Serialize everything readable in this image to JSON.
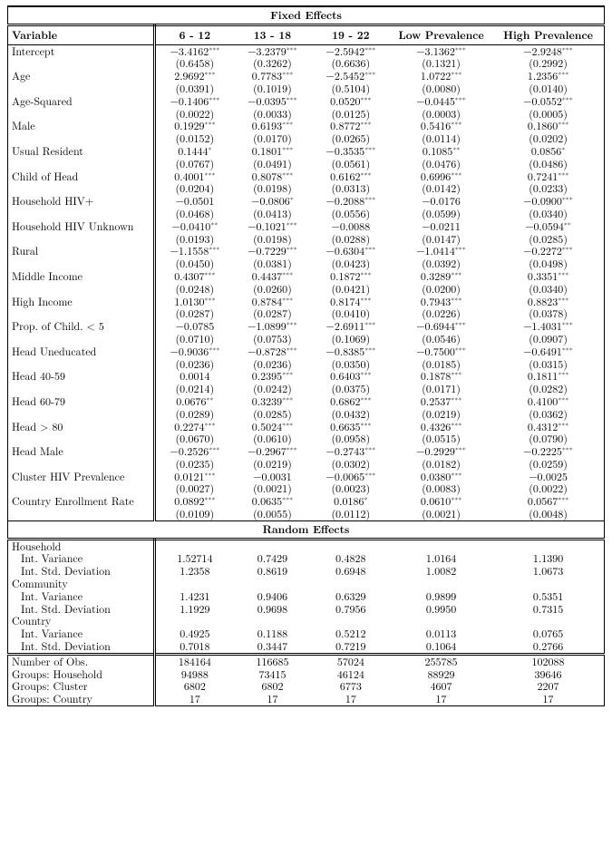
{
  "columns": [
    "6 - 12",
    "13 - 18",
    "19 - 22",
    "Low Prevalence",
    "High Prevalence"
  ],
  "sections": {
    "fixed": "Fixed Effects",
    "random": "Random Effects"
  },
  "header_label": "Variable",
  "fixed": [
    {
      "label": "Intercept",
      "est": [
        "−3.4162***",
        "−3.2379***",
        "−2.5942***",
        "−3.1362***",
        "−2.9248***"
      ],
      "se": [
        "(0.6458)",
        "(0.3262)",
        "(0.6636)",
        "(0.1321)",
        "(0.2992)"
      ]
    },
    {
      "label": "Age",
      "est": [
        "2.9692***",
        "0.7783***",
        "−2.5452***",
        "1.0722***",
        "1.2356***"
      ],
      "se": [
        "(0.0391)",
        "(0.1019)",
        "(0.5104)",
        "(0.0080)",
        "(0.0140)"
      ]
    },
    {
      "label": "Age-Squared",
      "est": [
        "−0.1406***",
        "−0.0395***",
        "0.0520***",
        "−0.0445***",
        "−0.0552***"
      ],
      "se": [
        "(0.0022)",
        "(0.0033)",
        "(0.0125)",
        "(0.0003)",
        "(0.0005)"
      ]
    },
    {
      "label": "Male",
      "est": [
        "0.1929***",
        "0.6193***",
        "0.8772***",
        "0.5416***",
        "0.1860***"
      ],
      "se": [
        "(0.0152)",
        "(0.0170)",
        "(0.0265)",
        "(0.0114)",
        "(0.0202)"
      ]
    },
    {
      "label": "Usual Resident",
      "est": [
        "0.1444*",
        "0.1801***",
        "−0.3535***",
        "0.1085**",
        "0.0856*"
      ],
      "se": [
        "(0.0767)",
        "(0.0491)",
        "(0.0561)",
        "(0.0476)",
        "(0.0486)"
      ]
    },
    {
      "label": "Child of Head",
      "est": [
        "0.4001***",
        "0.8078***",
        "0.6162***",
        "0.6996***",
        "0.7241***"
      ],
      "se": [
        "(0.0204)",
        "(0.0198)",
        "(0.0313)",
        "(0.0142)",
        "(0.0233)"
      ]
    },
    {
      "label": "Household HIV+",
      "est": [
        "−0.0501",
        "−0.0806*",
        "−0.2088***",
        "−0.0176",
        "−0.0900***"
      ],
      "se": [
        "(0.0468)",
        "(0.0413)",
        "(0.0556)",
        "(0.0599)",
        "(0.0340)"
      ]
    },
    {
      "label": "Household HIV Unknown",
      "est": [
        "−0.0410**",
        "−0.1021***",
        "−0.0088",
        "−0.0211",
        "−0.0594**"
      ],
      "se": [
        "(0.0193)",
        "(0.0198)",
        "(0.0288)",
        "(0.0147)",
        "(0.0285)"
      ]
    },
    {
      "label": "Rural",
      "est": [
        "−1.1558***",
        "−0.7229***",
        "−0.6304***",
        "−1.0414***",
        "−0.2272***"
      ],
      "se": [
        "(0.0450)",
        "(0.0381)",
        "(0.0423)",
        "(0.0392)",
        "(0.0498)"
      ]
    },
    {
      "label": "Middle Income",
      "est": [
        "0.4307***",
        "0.4437***",
        "0.1872***",
        "0.3289***",
        "0.3351***"
      ],
      "se": [
        "(0.0248)",
        "(0.0260)",
        "(0.0421)",
        "(0.0200)",
        "(0.0340)"
      ]
    },
    {
      "label": "High Income",
      "est": [
        "1.0130***",
        "0.8784***",
        "0.8174***",
        "0.7943***",
        "0.8823***"
      ],
      "se": [
        "(0.0287)",
        "(0.0287)",
        "(0.0410)",
        "(0.0226)",
        "(0.0378)"
      ]
    },
    {
      "label": "Prop. of Child. < 5",
      "est": [
        "−0.0785",
        "−1.0899***",
        "−2.6911***",
        "−0.6944***",
        "−1.4031***"
      ],
      "se": [
        "(0.0710)",
        "(0.0753)",
        "(0.1069)",
        "(0.0546)",
        "(0.0907)"
      ]
    },
    {
      "label": "Head Uneducated",
      "est": [
        "−0.9036***",
        "−0.8728***",
        "−0.8385***",
        "−0.7500***",
        "−0.6491***"
      ],
      "se": [
        "(0.0236)",
        "(0.0236)",
        "(0.0350)",
        "(0.0185)",
        "(0.0315)"
      ]
    },
    {
      "label": "Head 40-59",
      "est": [
        "0.0014",
        "0.2395***",
        "0.6403***",
        "0.1878***",
        "0.1811***"
      ],
      "se": [
        "(0.0214)",
        "(0.0242)",
        "(0.0375)",
        "(0.0171)",
        "(0.0282)"
      ]
    },
    {
      "label": "Head 60-79",
      "est": [
        "0.0676**",
        "0.3239***",
        "0.6862***",
        "0.2537***",
        "0.4100***"
      ],
      "se": [
        "(0.0289)",
        "(0.0285)",
        "(0.0432)",
        "(0.0219)",
        "(0.0362)"
      ]
    },
    {
      "label": "Head > 80",
      "est": [
        "0.2274***",
        "0.5024***",
        "0.6635***",
        "0.4326***",
        "0.4312***"
      ],
      "se": [
        "(0.0670)",
        "(0.0610)",
        "(0.0958)",
        "(0.0515)",
        "(0.0790)"
      ]
    },
    {
      "label": "Head Male",
      "est": [
        "−0.2526***",
        "−0.2967***",
        "−0.2743***",
        "−0.2929***",
        "−0.2225***"
      ],
      "se": [
        "(0.0235)",
        "(0.0219)",
        "(0.0302)",
        "(0.0182)",
        "(0.0259)"
      ]
    },
    {
      "label": "Cluster HIV Prevalence",
      "est": [
        "0.0121***",
        "−0.0031",
        "−0.0065***",
        "0.0380***",
        "−0.0025"
      ],
      "se": [
        "(0.0027)",
        "(0.0021)",
        "(0.0023)",
        "(0.0083)",
        "(0.0022)"
      ]
    },
    {
      "label": "Country Enrollment Rate",
      "est": [
        "0.0892***",
        "0.0635***",
        "0.0186*",
        "0.0610***",
        "0.0567***"
      ],
      "se": [
        "(0.0109)",
        "(0.0055)",
        "(0.0112)",
        "(0.0021)",
        "(0.0048)"
      ]
    }
  ],
  "random": [
    {
      "label": "Household",
      "vals": null
    },
    {
      "label": "Int. Variance",
      "indent": true,
      "vals": [
        "1.52714",
        "0.7429",
        "0.4828",
        "1.0164",
        "1.1390"
      ]
    },
    {
      "label": "Int. Std. Deviation",
      "indent": true,
      "vals": [
        "1.2358",
        "0.8619",
        "0.6948",
        "1.0082",
        "1.0673"
      ]
    },
    {
      "label": "Community",
      "vals": null
    },
    {
      "label": "Int. Variance",
      "indent": true,
      "vals": [
        "1.4231",
        "0.9406",
        "0.6329",
        "0.9899",
        "0.5351"
      ]
    },
    {
      "label": "Int. Std. Deviation",
      "indent": true,
      "vals": [
        "1.1929",
        "0.9698",
        "0.7956",
        "0.9950",
        "0.7315"
      ]
    },
    {
      "label": "Country",
      "vals": null
    },
    {
      "label": "Int. Variance",
      "indent": true,
      "vals": [
        "0.4925",
        "0.1188",
        "0.5212",
        "0.0113",
        "0.0765"
      ]
    },
    {
      "label": "Int. Std. Deviation",
      "indent": true,
      "vals": [
        "0.7018",
        "0.3447",
        "0.7219",
        "0.1064",
        "0.2766"
      ]
    }
  ],
  "footer": [
    {
      "label": "Number of Obs.",
      "vals": [
        "184164",
        "116685",
        "57024",
        "255785",
        "102088"
      ]
    },
    {
      "label": "Groups: Household",
      "vals": [
        "94988",
        "73415",
        "46124",
        "88929",
        "39646"
      ]
    },
    {
      "label": "Groups: Cluster",
      "vals": [
        "6802",
        "6802",
        "6773",
        "4607",
        "2207"
      ]
    },
    {
      "label": "Groups: Country",
      "vals": [
        "17",
        "17",
        "17",
        "17",
        "17"
      ]
    }
  ]
}
